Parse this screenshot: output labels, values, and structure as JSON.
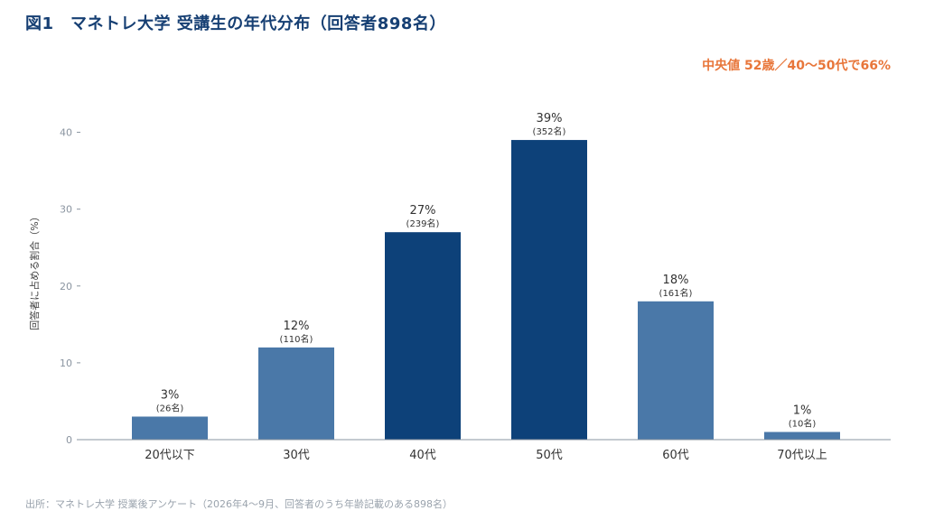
{
  "header": {
    "title": "図1　マネトレ大学 受講生の年代分布（回答者898名）",
    "callout": "中央値 52歳／40〜50代で66%"
  },
  "footer": {
    "source": "出所：マネトレ大学 授業後アンケート（2026年4〜9月、回答者のうち年齢記載のある898名）"
  },
  "colors": {
    "bar_light": "#4a78a8",
    "bar_dark": "#0d4179",
    "title": "#163f73",
    "callout": "#e8763a"
  },
  "chart_data": {
    "type": "bar",
    "title": "図1　マネトレ大学 受講生の年代分布（回答者898名）",
    "xlabel": "",
    "ylabel": "回答者に占める割合（%）",
    "ylim": [
      0,
      45
    ],
    "yticks": [
      "0",
      "10",
      "20",
      "30",
      "40"
    ],
    "grid": false,
    "categories": [
      "20代以下",
      "30代",
      "40代",
      "50代",
      "60代",
      "70代以上"
    ],
    "values": [
      3,
      12,
      27,
      39,
      18,
      1
    ],
    "value_labels": [
      "3%",
      "12%",
      "27%",
      "39%",
      "18%",
      "1%"
    ],
    "count_labels": [
      "(26名)",
      "(110名)",
      "(239名)",
      "(352名)",
      "(161名)",
      "(10名)"
    ],
    "highlight": [
      false,
      false,
      true,
      true,
      false,
      false
    ]
  }
}
